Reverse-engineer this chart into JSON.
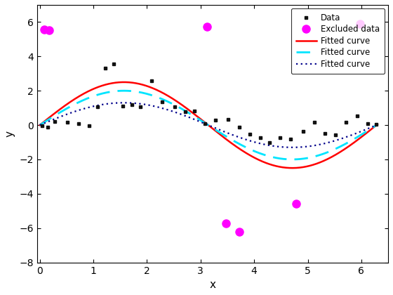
{
  "title": "",
  "xlabel": "x",
  "ylabel": "y",
  "xlim": [
    -0.05,
    6.5
  ],
  "ylim": [
    -8,
    7
  ],
  "yticks": [
    -8,
    -6,
    -4,
    -2,
    0,
    2,
    4,
    6
  ],
  "xticks": [
    0,
    1,
    2,
    3,
    4,
    5,
    6
  ],
  "data_x": [
    0.05,
    0.15,
    0.28,
    0.52,
    0.72,
    0.92,
    1.08,
    1.22,
    1.38,
    1.55,
    1.72,
    1.88,
    2.08,
    2.28,
    2.52,
    2.72,
    2.88,
    3.08,
    3.28,
    3.52,
    3.72,
    3.92,
    4.12,
    4.28,
    4.48,
    4.68,
    4.92,
    5.12,
    5.32,
    5.52,
    5.72,
    5.92,
    6.12,
    6.28
  ],
  "data_y": [
    -0.05,
    -0.12,
    0.22,
    0.18,
    0.08,
    -0.05,
    1.08,
    3.32,
    3.55,
    1.12,
    1.18,
    1.08,
    2.58,
    1.35,
    1.08,
    0.78,
    0.82,
    0.08,
    0.28,
    0.32,
    -0.12,
    -0.52,
    -0.72,
    -1.0,
    -0.72,
    -0.82,
    -0.38,
    0.18,
    -0.48,
    -0.58,
    0.18,
    0.52,
    0.08,
    0.05
  ],
  "excluded_x": [
    0.08,
    0.18,
    3.12,
    3.48,
    3.72,
    4.78,
    5.98
  ],
  "excluded_y": [
    5.58,
    5.52,
    5.72,
    -5.72,
    -6.22,
    -4.58,
    5.88
  ],
  "curve_x_start": 0.0,
  "curve_x_end": 6.3,
  "n_curve_points": 500,
  "background_color": "#ffffff",
  "data_color": "#111111",
  "data_marker": "s",
  "data_markersize": 3.5,
  "excluded_color": "#ff00ff",
  "excluded_marker": "o",
  "excluded_markersize": 8,
  "red_curve_color": "#ff0000",
  "red_curve_lw": 1.8,
  "red_amplitude": 2.5,
  "cyan_curve_color": "#00e5ff",
  "cyan_curve_lw": 2.0,
  "cyan_amplitude": 2.0,
  "blue_curve_color": "#00008b",
  "blue_curve_lw": 1.6,
  "blue_amplitude": 1.3,
  "legend_loc": "upper right",
  "legend_labels": [
    "Data",
    "Excluded data",
    "Fitted curve",
    "Fitted curve",
    "Fitted curve"
  ],
  "figsize": [
    5.6,
    4.2
  ],
  "dpi": 100
}
